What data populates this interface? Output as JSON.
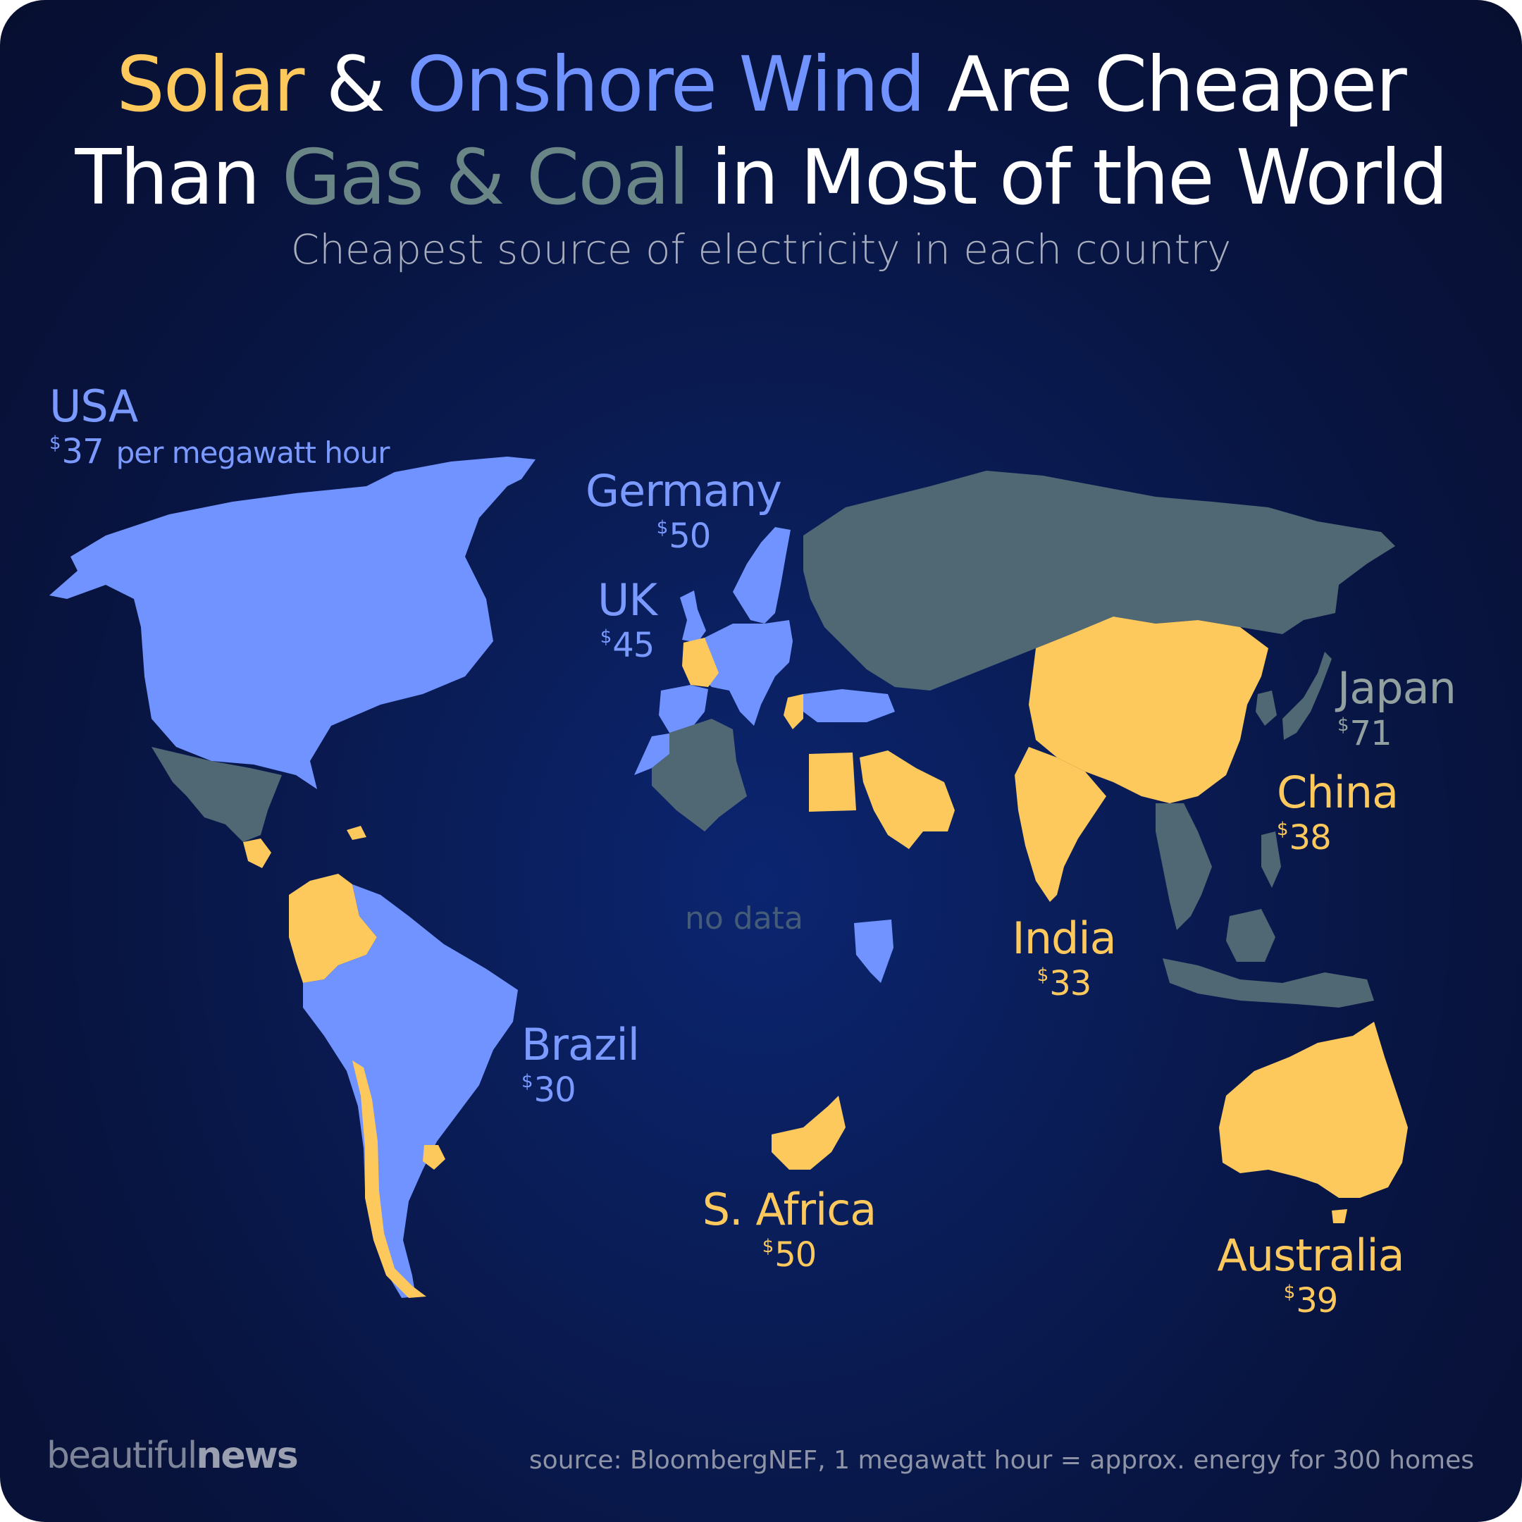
{
  "title": {
    "line1": {
      "solar": "Solar",
      "amp1": " & ",
      "wind": "Onshore Wind",
      "rest": " Are Cheaper"
    },
    "line2": {
      "start": "Than ",
      "gas": "Gas & Coal",
      "rest": " in Most of the World"
    }
  },
  "subtitle": "Cheapest source of electricity in each country",
  "colors": {
    "solar": "#fdc95c",
    "onshore_wind": "#7193ff",
    "gas_coal": "#4f6874",
    "background": "#0a1c55"
  },
  "labels": [
    {
      "id": "usa",
      "name": "USA",
      "currency": "$",
      "price": "37",
      "unit": "per megawatt hour",
      "source": "onshore_wind"
    },
    {
      "id": "germany",
      "name": "Germany",
      "currency": "$",
      "price": "50",
      "source": "onshore_wind"
    },
    {
      "id": "uk",
      "name": "UK",
      "currency": "$",
      "price": "45",
      "source": "onshore_wind"
    },
    {
      "id": "japan",
      "name": "Japan",
      "currency": "$",
      "price": "71",
      "source": "gas_coal"
    },
    {
      "id": "china",
      "name": "China",
      "currency": "$",
      "price": "38",
      "source": "solar"
    },
    {
      "id": "india",
      "name": "India",
      "currency": "$",
      "price": "33",
      "source": "solar"
    },
    {
      "id": "brazil",
      "name": "Brazil",
      "currency": "$",
      "price": "30",
      "source": "onshore_wind"
    },
    {
      "id": "s-africa",
      "name": "S. Africa",
      "currency": "$",
      "price": "50",
      "source": "solar"
    },
    {
      "id": "australia",
      "name": "Australia",
      "currency": "$",
      "price": "39",
      "source": "solar"
    }
  ],
  "no_data_label": "no data",
  "brand": {
    "part1": "beautiful",
    "part2": "news"
  },
  "source": "source: BloombergNEF, 1 megawatt hour = approx. energy for 300 homes"
}
